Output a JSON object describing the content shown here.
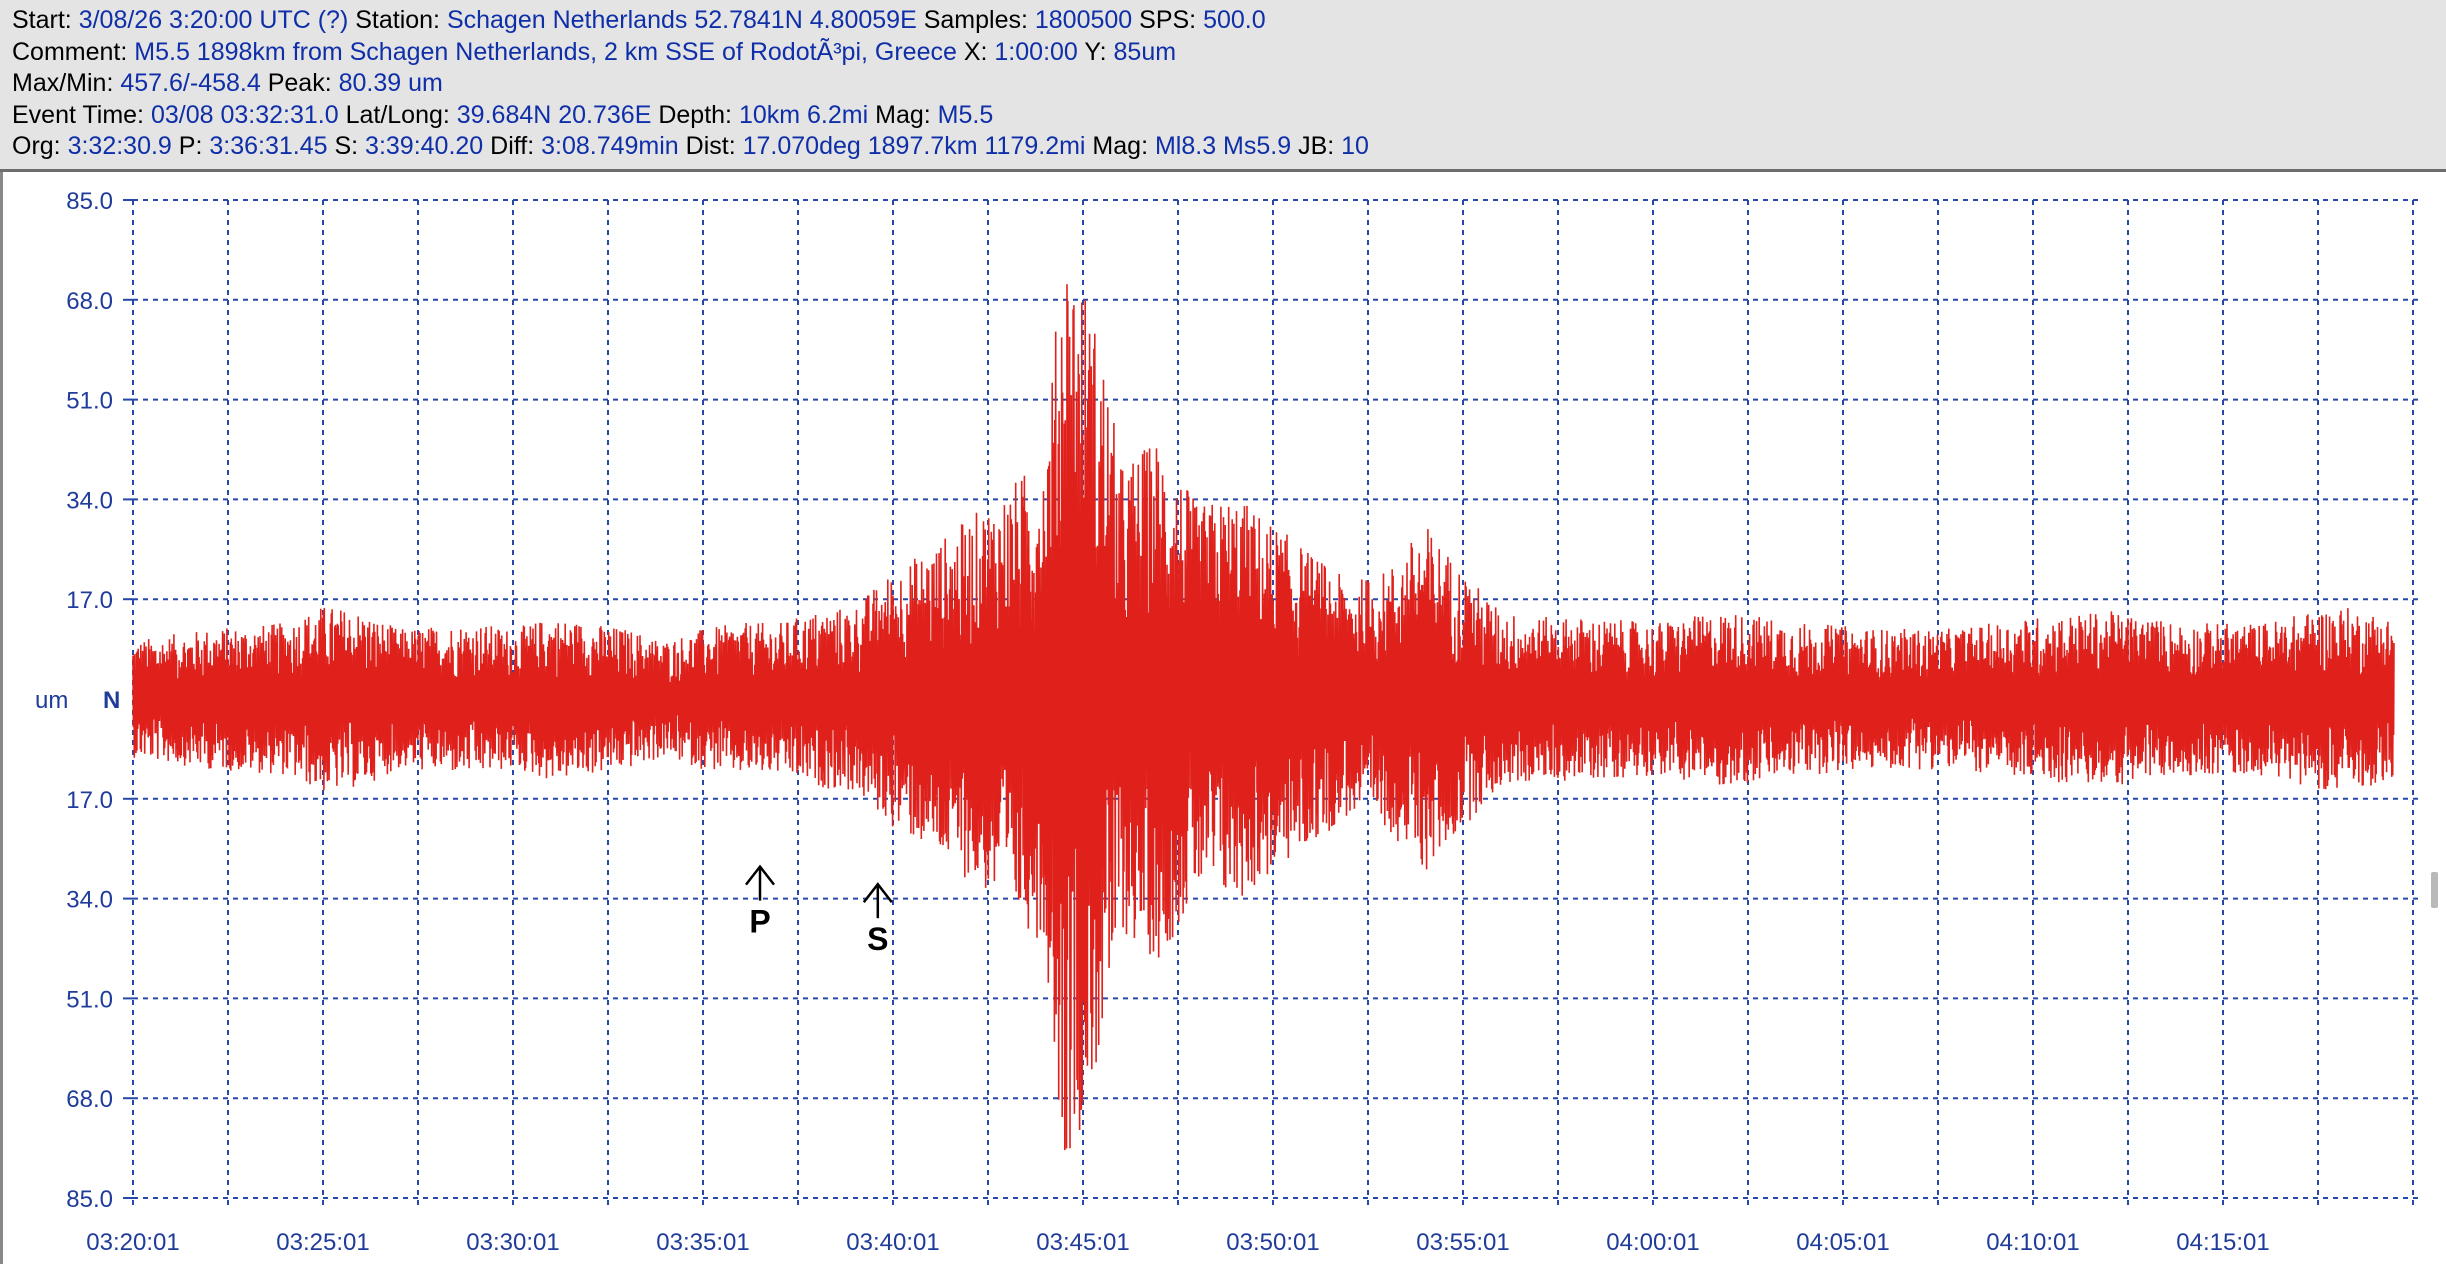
{
  "header": {
    "line1": [
      {
        "k": "Start: ",
        "v": "3/08/26  3:20:00 UTC (?)"
      },
      {
        "k": " Station: ",
        "v": "Schagen Netherlands 52.7841N 4.80059E"
      },
      {
        "k": " Samples: ",
        "v": "1800500"
      },
      {
        "k": "  SPS: ",
        "v": "500.0"
      }
    ],
    "line2": [
      {
        "k": "Comment: ",
        "v": "M5.5 1898km from Schagen Netherlands, 2 km SSE of RodotÃ³pi, Greece"
      },
      {
        "k": "    X: ",
        "v": "1:00:00"
      },
      {
        "k": " Y: ",
        "v": "85um"
      }
    ],
    "line3": [
      {
        "k": "Max/Min: ",
        "v": "457.6/-458.4"
      },
      {
        "k": "  Peak: ",
        "v": "80.39 um"
      }
    ],
    "line4": [
      {
        "k": "Event Time: ",
        "v": "03/08 03:32:31.0"
      },
      {
        "k": " Lat/Long: ",
        "v": "39.684N 20.736E"
      },
      {
        "k": " Depth: ",
        "v": "10km 6.2mi"
      },
      {
        "k": " Mag: ",
        "v": "M5.5"
      }
    ],
    "line5": [
      {
        "k": "Org: ",
        "v": "3:32:30.9"
      },
      {
        "k": " P: ",
        "v": "3:36:31.45"
      },
      {
        "k": " S: ",
        "v": "3:39:40.20"
      },
      {
        "k": " Diff: ",
        "v": "3:08.749min"
      },
      {
        "k": " Dist: ",
        "v": "17.070deg 1897.7km 1179.2mi"
      },
      {
        "k": "  Mag: ",
        "v": "Ml8.3 Ms5.9"
      },
      {
        "k": " JB: ",
        "v": "10"
      }
    ]
  },
  "chart_data": {
    "type": "line",
    "ylabel": "um",
    "channel": "N",
    "y_tick_labels": [
      "85.0",
      "68.0",
      "51.0",
      "34.0",
      "17.0",
      "17.0",
      "34.0",
      "51.0",
      "68.0",
      "85.0"
    ],
    "y_tick_values": [
      85,
      68,
      51,
      34,
      17,
      -17,
      -34,
      -51,
      -68,
      -85
    ],
    "ylim": [
      -85,
      85
    ],
    "x_tick_labels": [
      "03:20:01",
      "03:25:01",
      "03:30:01",
      "03:35:01",
      "03:40:01",
      "03:45:01",
      "03:50:01",
      "03:55:01",
      "04:00:01",
      "04:05:01",
      "04:10:01",
      "04:15:01"
    ],
    "x_range_minutes": [
      0,
      60
    ],
    "grid": true,
    "series": [
      {
        "color": "#e0201b",
        "envelope_minutes": [
          0,
          1,
          2,
          4,
          5,
          6,
          7,
          9,
          10,
          11,
          12,
          13,
          14,
          15,
          16,
          17,
          18,
          19,
          20,
          21,
          22,
          23,
          24,
          24.5,
          25,
          25.5,
          26,
          27,
          28,
          29,
          30,
          31,
          32,
          33,
          34,
          35,
          36,
          37,
          38,
          40,
          42,
          44,
          46,
          48,
          50,
          52,
          54,
          56,
          58,
          59.5
        ],
        "envelope_um": [
          10,
          11,
          12,
          13,
          16,
          15,
          12,
          13,
          12,
          14,
          13,
          12,
          10,
          12,
          13,
          13,
          15,
          16,
          22,
          26,
          31,
          36,
          42,
          80,
          72,
          60,
          40,
          45,
          33,
          35,
          30,
          25,
          20,
          22,
          30,
          22,
          15,
          14,
          14,
          13,
          15,
          13,
          12,
          12,
          14,
          15,
          13,
          13,
          16,
          14
        ]
      }
    ],
    "annotations": [
      {
        "label": "P",
        "x_minutes": 16.5,
        "y_um": -34
      },
      {
        "label": "S",
        "x_minutes": 19.6,
        "y_um": -37
      }
    ]
  }
}
